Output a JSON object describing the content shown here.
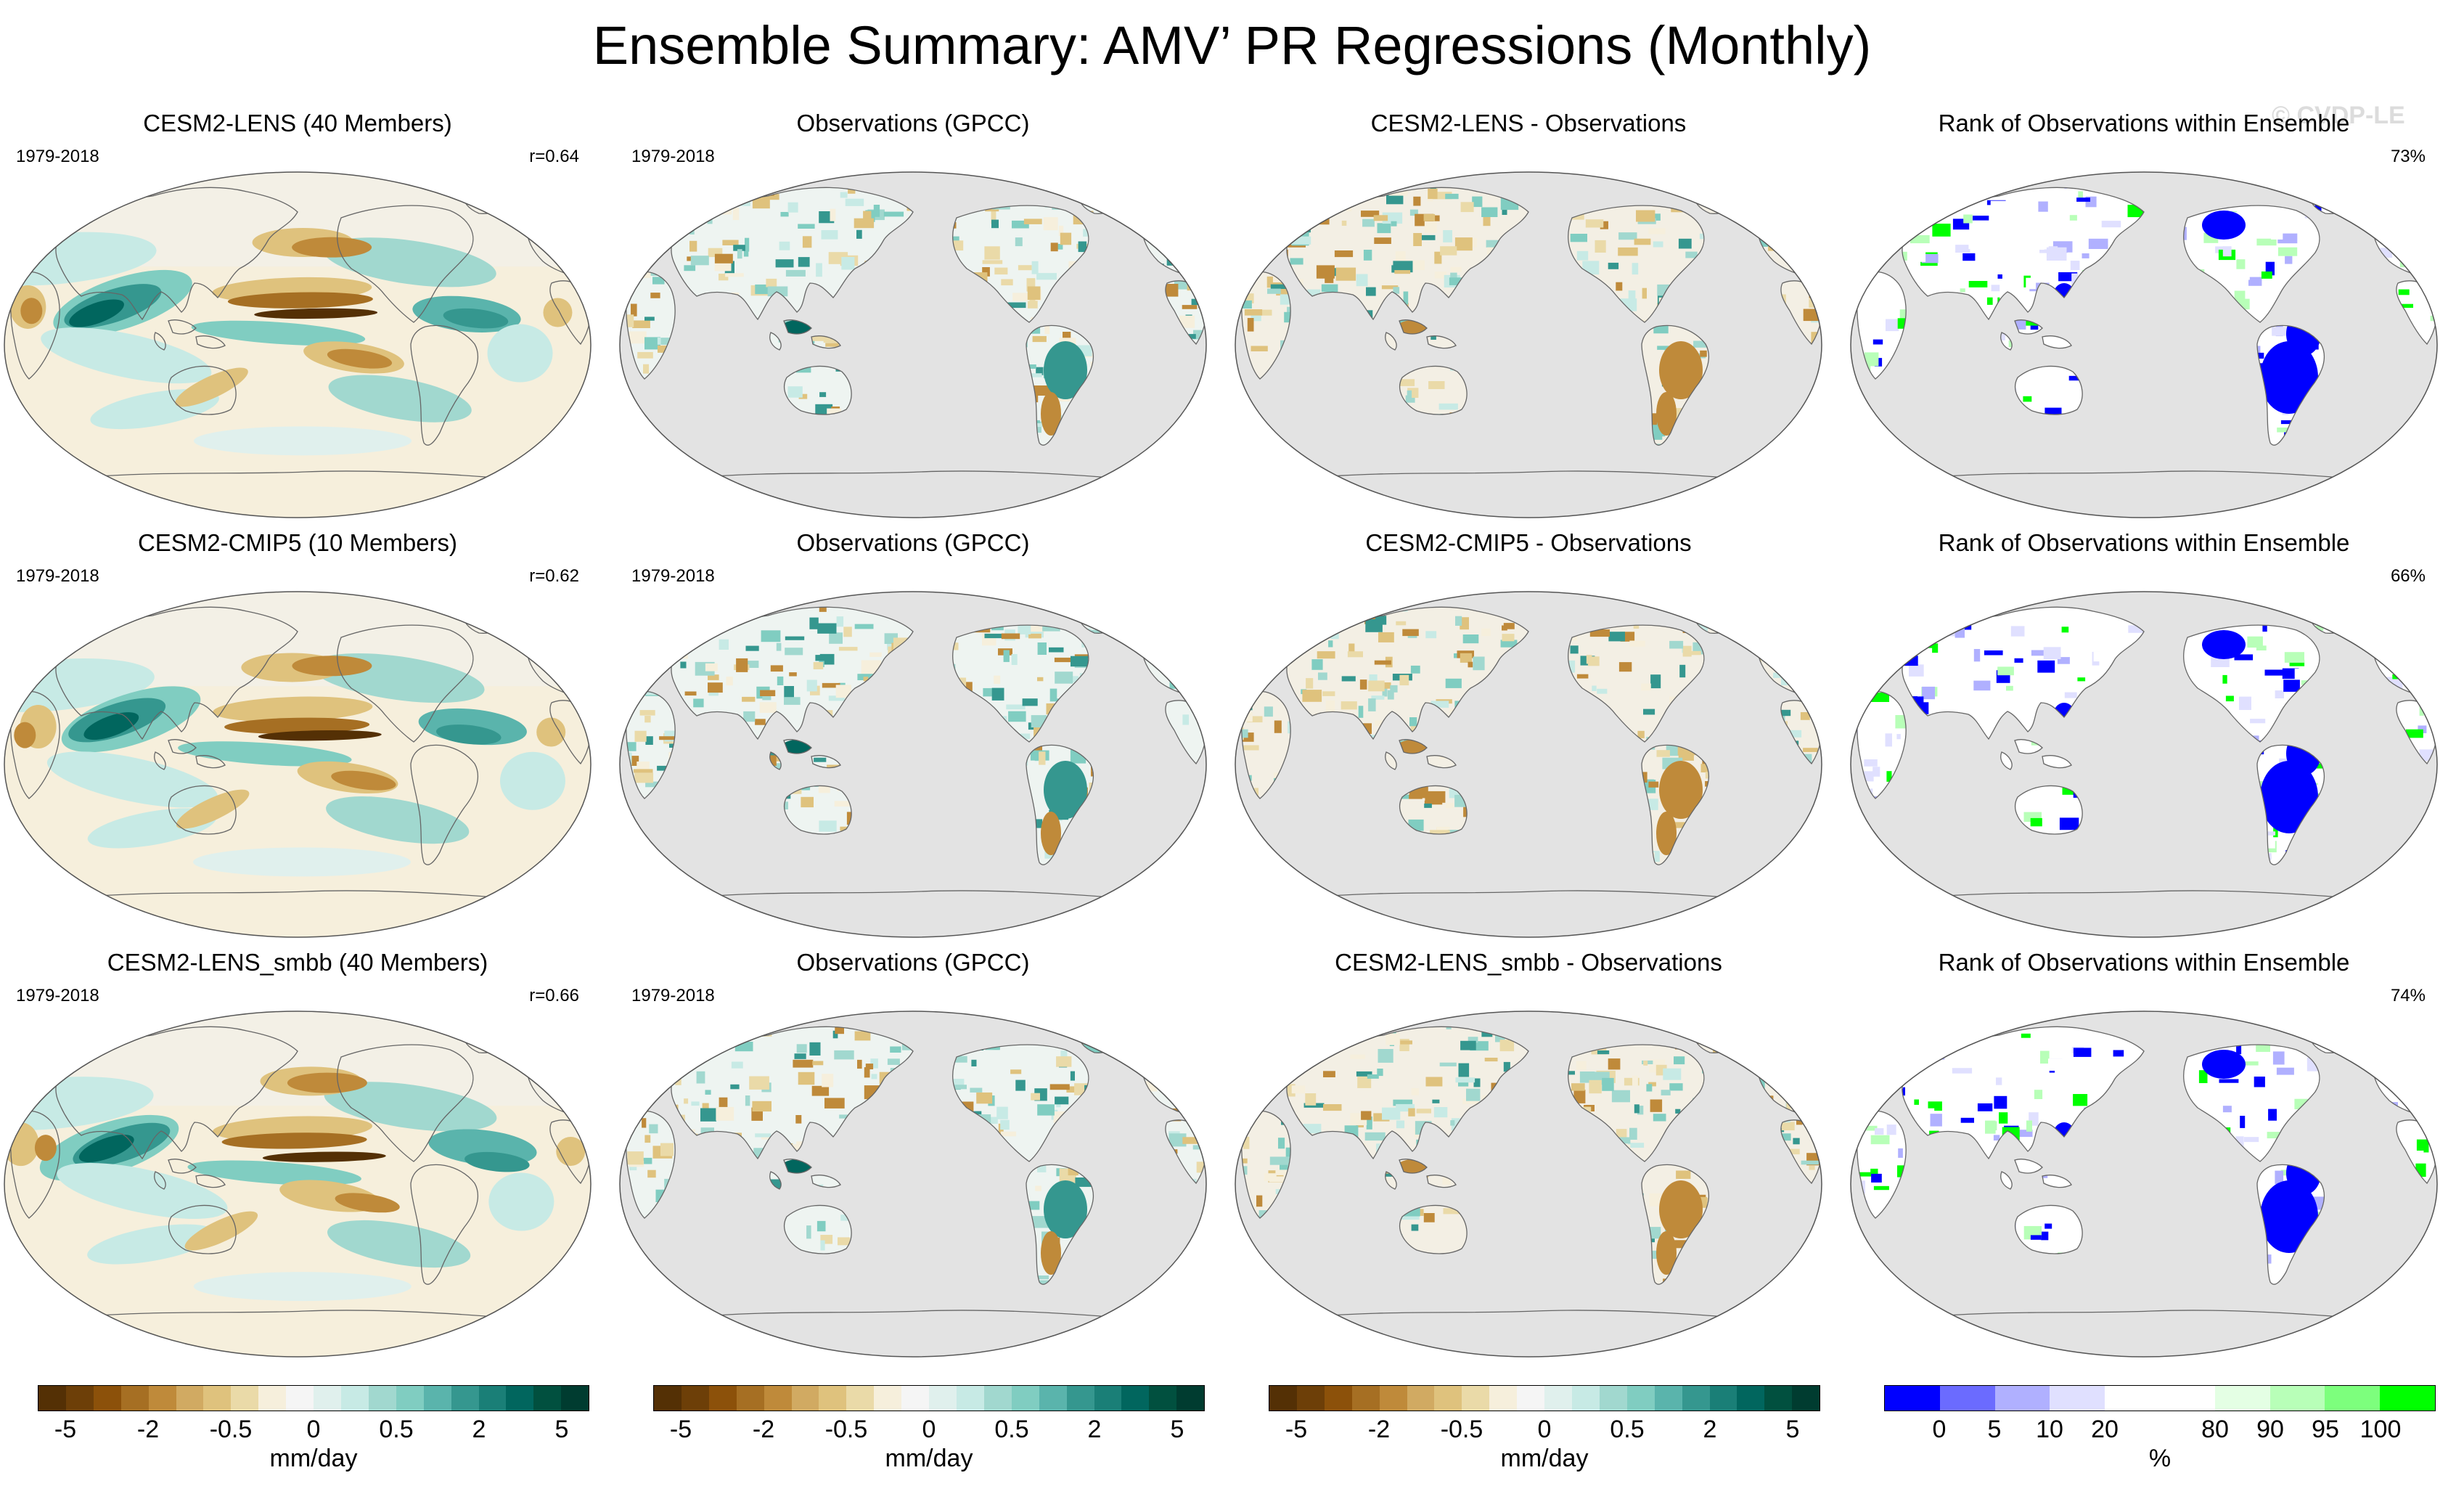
{
  "title": "Ensemble Summary: AMV’ PR Regressions (Monthly)",
  "watermark": "© CVDP-LE",
  "rows": [
    {
      "model": {
        "title": "CESM2-LENS (40 Members)",
        "period": "1979-2018",
        "stat": "r=0.64"
      },
      "obs": {
        "title": "Observations (GPCC)",
        "period": "1979-2018"
      },
      "diff": {
        "title": "CESM2-LENS - Observations"
      },
      "rank": {
        "title": "Rank of Observations within Ensemble",
        "stat": "73%"
      }
    },
    {
      "model": {
        "title": "CESM2-CMIP5 (10 Members)",
        "period": "1979-2018",
        "stat": "r=0.62"
      },
      "obs": {
        "title": "Observations (GPCC)",
        "period": "1979-2018"
      },
      "diff": {
        "title": "CESM2-CMIP5 - Observations"
      },
      "rank": {
        "title": "Rank of Observations within Ensemble",
        "stat": "66%"
      }
    },
    {
      "model": {
        "title": "CESM2-LENS_smbb (40 Members)",
        "period": "1979-2018",
        "stat": "r=0.66"
      },
      "obs": {
        "title": "Observations (GPCC)",
        "period": "1979-2018"
      },
      "diff": {
        "title": "CESM2-LENS_smbb - Observations"
      },
      "rank": {
        "title": "Rank of Observations within Ensemble",
        "stat": "74%"
      }
    }
  ],
  "colorbars": [
    {
      "unit": "mm/day",
      "ticks": [
        "-5",
        "-2",
        "-0.5",
        "0",
        "0.5",
        "2",
        "5"
      ],
      "colors": [
        "#543005",
        "#6d3f08",
        "#8c510a",
        "#a66f23",
        "#bf8a3a",
        "#d1aa62",
        "#dfc27d",
        "#eadaa8",
        "#f6efdc",
        "#f5f5f5",
        "#e0f0ed",
        "#c7eae5",
        "#a1d8cf",
        "#80cdc1",
        "#5ab4ac",
        "#35978f",
        "#1a7f77",
        "#01665e",
        "#01503f",
        "#003c30"
      ]
    },
    {
      "unit": "mm/day",
      "ticks": [
        "-5",
        "-2",
        "-0.5",
        "0",
        "0.5",
        "2",
        "5"
      ],
      "colors": [
        "#543005",
        "#6d3f08",
        "#8c510a",
        "#a66f23",
        "#bf8a3a",
        "#d1aa62",
        "#dfc27d",
        "#eadaa8",
        "#f6efdc",
        "#f5f5f5",
        "#e0f0ed",
        "#c7eae5",
        "#a1d8cf",
        "#80cdc1",
        "#5ab4ac",
        "#35978f",
        "#1a7f77",
        "#01665e",
        "#01503f",
        "#003c30"
      ]
    },
    {
      "unit": "mm/day",
      "ticks": [
        "-5",
        "-2",
        "-0.5",
        "0",
        "0.5",
        "2",
        "5"
      ],
      "colors": [
        "#543005",
        "#6d3f08",
        "#8c510a",
        "#a66f23",
        "#bf8a3a",
        "#d1aa62",
        "#dfc27d",
        "#eadaa8",
        "#f6efdc",
        "#f5f5f5",
        "#e0f0ed",
        "#c7eae5",
        "#a1d8cf",
        "#80cdc1",
        "#5ab4ac",
        "#35978f",
        "#1a7f77",
        "#01665e",
        "#01503f",
        "#003c30"
      ]
    },
    {
      "unit": "%",
      "ticks": [
        "0",
        "5",
        "10",
        "20",
        "80",
        "90",
        "95",
        "100"
      ],
      "colors": [
        "#0000ff",
        "#6b6bff",
        "#b0b0ff",
        "#e0e0ff",
        "#ffffff",
        "#ffffff",
        "#e4ffe4",
        "#b8ffb8",
        "#7dff7d",
        "#00ff00"
      ]
    }
  ],
  "colors": {
    "land_gray": "#e3e3e3",
    "coast": "#666666",
    "brown": "#bf8a3a",
    "brown_dark": "#6d3f08",
    "teal": "#35978f",
    "teal_dark": "#01665e",
    "teal_light": "#c7eae5",
    "rank_blue": "#0000ff",
    "rank_green": "#00ff00"
  }
}
